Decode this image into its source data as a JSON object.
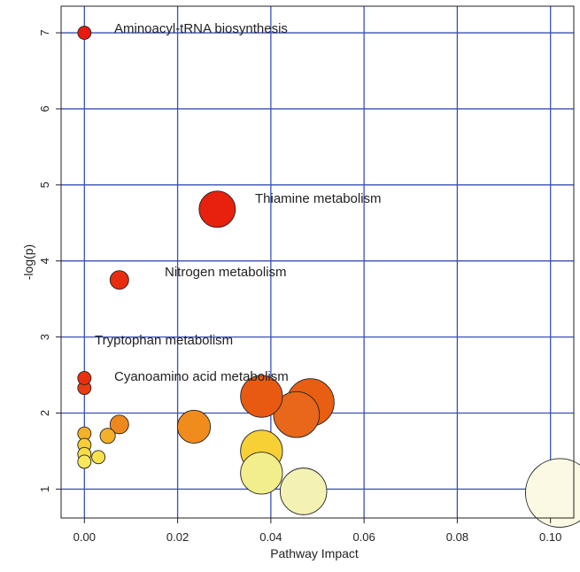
{
  "chart_data": {
    "type": "scatter",
    "title": "",
    "xlabel": "Pathway Impact",
    "ylabel": "-log(p)",
    "xlim": [
      -0.005,
      0.105
    ],
    "ylim": [
      0.62,
      7.35
    ],
    "x_ticks": [
      0.0,
      0.02,
      0.04,
      0.06,
      0.08,
      0.1
    ],
    "x_tick_labels": [
      "0.00",
      "0.02",
      "0.04",
      "0.06",
      "0.08",
      "0.10"
    ],
    "y_ticks": [
      1,
      2,
      3,
      4,
      5,
      6,
      7
    ],
    "y_tick_labels": [
      "1",
      "2",
      "3",
      "4",
      "5",
      "6",
      "7"
    ],
    "grid": true,
    "grid_color": "#3a50b5",
    "size_encoding": "Pathway Impact",
    "color_encoding": "-log(p)",
    "points": [
      {
        "x": 0.0,
        "y": 7.0,
        "size": 0.003,
        "color": "#e81a0f",
        "label": "Aminoacyl-tRNA biosynthesis"
      },
      {
        "x": 0.0285,
        "y": 4.68,
        "size": 0.0285,
        "color": "#e8200e",
        "label": "Thiamine metabolism"
      },
      {
        "x": 0.0075,
        "y": 3.75,
        "size": 0.0075,
        "color": "#e82c0f",
        "label": "Nitrogen metabolism"
      },
      {
        "x": 0.0,
        "y": 2.46,
        "size": 0.0018,
        "color": "#e8300f",
        "label": "Tryptophan metabolism"
      },
      {
        "x": 0.0,
        "y": 2.33,
        "size": 0.002,
        "color": "#e83d10",
        "label": "Cyanoamino acid metabolism"
      },
      {
        "x": 0.038,
        "y": 2.22,
        "size": 0.038,
        "color": "#e85a12",
        "label": ""
      },
      {
        "x": 0.0485,
        "y": 2.14,
        "size": 0.0485,
        "color": "#e85e12",
        "label": ""
      },
      {
        "x": 0.0455,
        "y": 1.98,
        "size": 0.0455,
        "color": "#e8671a",
        "label": ""
      },
      {
        "x": 0.0075,
        "y": 1.85,
        "size": 0.0075,
        "color": "#ee881c",
        "label": ""
      },
      {
        "x": 0.0235,
        "y": 1.82,
        "size": 0.0235,
        "color": "#ef8c1c",
        "label": ""
      },
      {
        "x": 0.0,
        "y": 1.73,
        "size": 0.002,
        "color": "#f5b02a",
        "label": ""
      },
      {
        "x": 0.005,
        "y": 1.7,
        "size": 0.005,
        "color": "#f5b02a",
        "label": ""
      },
      {
        "x": 0.0,
        "y": 1.58,
        "size": 0.002,
        "color": "#f7ce3a",
        "label": ""
      },
      {
        "x": 0.038,
        "y": 1.5,
        "size": 0.038,
        "color": "#f7d035",
        "label": ""
      },
      {
        "x": 0.0,
        "y": 1.46,
        "size": 0.002,
        "color": "#f8dc48",
        "label": ""
      },
      {
        "x": 0.003,
        "y": 1.42,
        "size": 0.003,
        "color": "#f8e04e",
        "label": ""
      },
      {
        "x": 0.0,
        "y": 1.36,
        "size": 0.002,
        "color": "#f8e85a",
        "label": ""
      },
      {
        "x": 0.038,
        "y": 1.21,
        "size": 0.038,
        "color": "#f2ee8c",
        "label": ""
      },
      {
        "x": 0.047,
        "y": 0.97,
        "size": 0.047,
        "color": "#f3f2b3",
        "label": ""
      },
      {
        "x": 0.102,
        "y": 0.95,
        "size": 0.102,
        "color": "#fbf9e3",
        "label": ""
      }
    ]
  }
}
